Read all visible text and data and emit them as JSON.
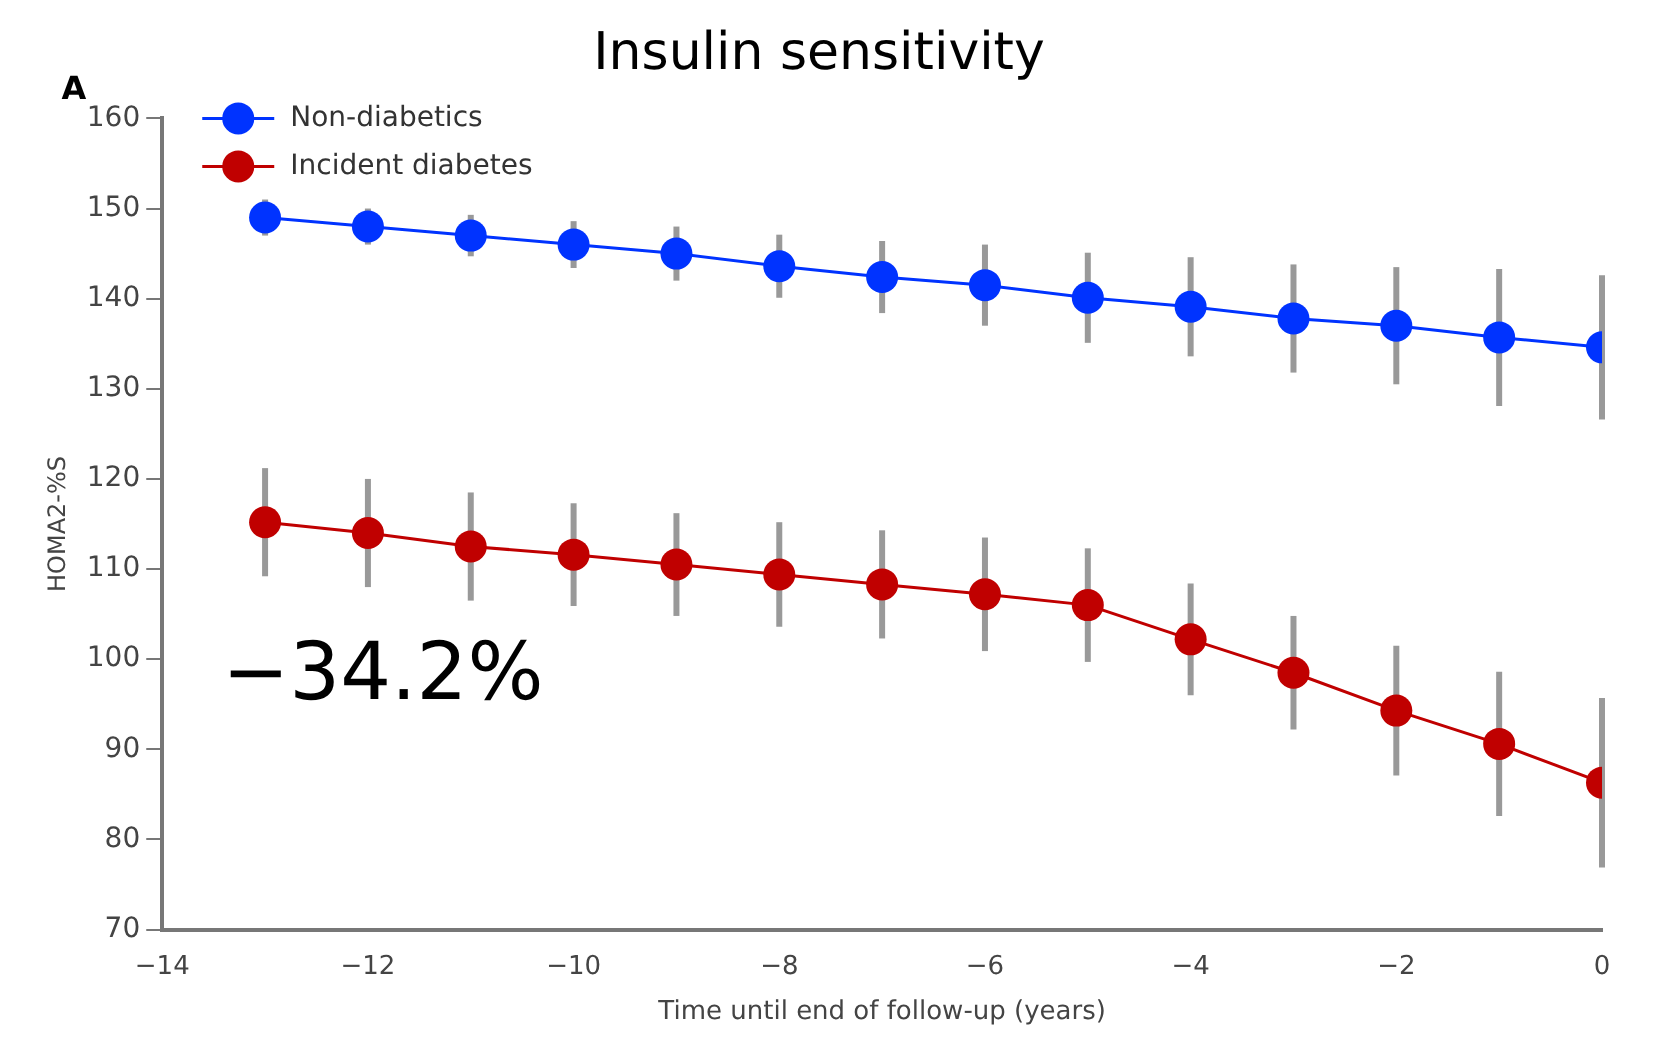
{
  "chart_data": {
    "type": "line",
    "title": "Insulin sensitivity",
    "xlabel": "Time until end of follow-up (years)",
    "ylabel": "HOMA2-%S",
    "x": [
      -13,
      -12,
      -11,
      -10,
      -9,
      -8,
      -7,
      -6,
      -5,
      -4,
      -3,
      -2,
      -1,
      0
    ],
    "series": [
      {
        "name": "Non-diabetics",
        "color": "#0033ff",
        "values": [
          149,
          148,
          147,
          146,
          145,
          143.6,
          142.4,
          141.5,
          140.1,
          139.1,
          137.8,
          137,
          135.7,
          134.6
        ],
        "errors": [
          2,
          2,
          2.3,
          2.6,
          3,
          3.5,
          4,
          4.5,
          5,
          5.5,
          6,
          6.5,
          7.6,
          8
        ]
      },
      {
        "name": "Incident diabetes",
        "color": "#c00000",
        "values": [
          115.2,
          114,
          112.5,
          111.6,
          110.5,
          109.4,
          108.3,
          107.2,
          106,
          102.2,
          98.5,
          94.3,
          90.6,
          86.3
        ],
        "errors": [
          6,
          6,
          6,
          5.7,
          5.7,
          5.8,
          6,
          6.3,
          6.3,
          6.2,
          6.3,
          7.2,
          8,
          9.4
        ]
      }
    ],
    "xlim": [
      -14,
      0
    ],
    "xticks": [
      -14,
      -12,
      -10,
      -8,
      -6,
      -4,
      -2,
      0
    ],
    "ylim": [
      70,
      160
    ],
    "yticks": [
      70,
      80,
      90,
      100,
      110,
      120,
      130,
      140,
      150,
      160
    ],
    "annotations": [
      "A",
      "−34.2%"
    ],
    "legend": "top left",
    "marker": "circle",
    "grid": false
  }
}
